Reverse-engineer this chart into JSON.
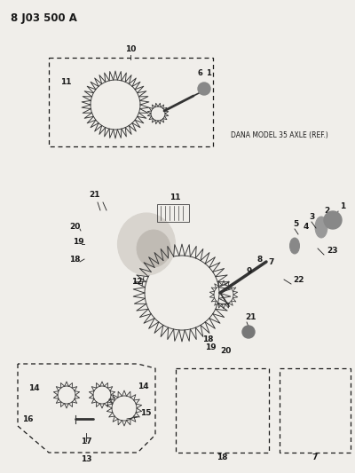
{
  "bg_color": "#f0eeea",
  "line_color": "#1a1a1a",
  "figsize": [
    4.0,
    5.33
  ],
  "dpi": 100,
  "title": "8 J03 500 A",
  "dana_label": "DANA MODEL 35 AXLE (REF.)"
}
